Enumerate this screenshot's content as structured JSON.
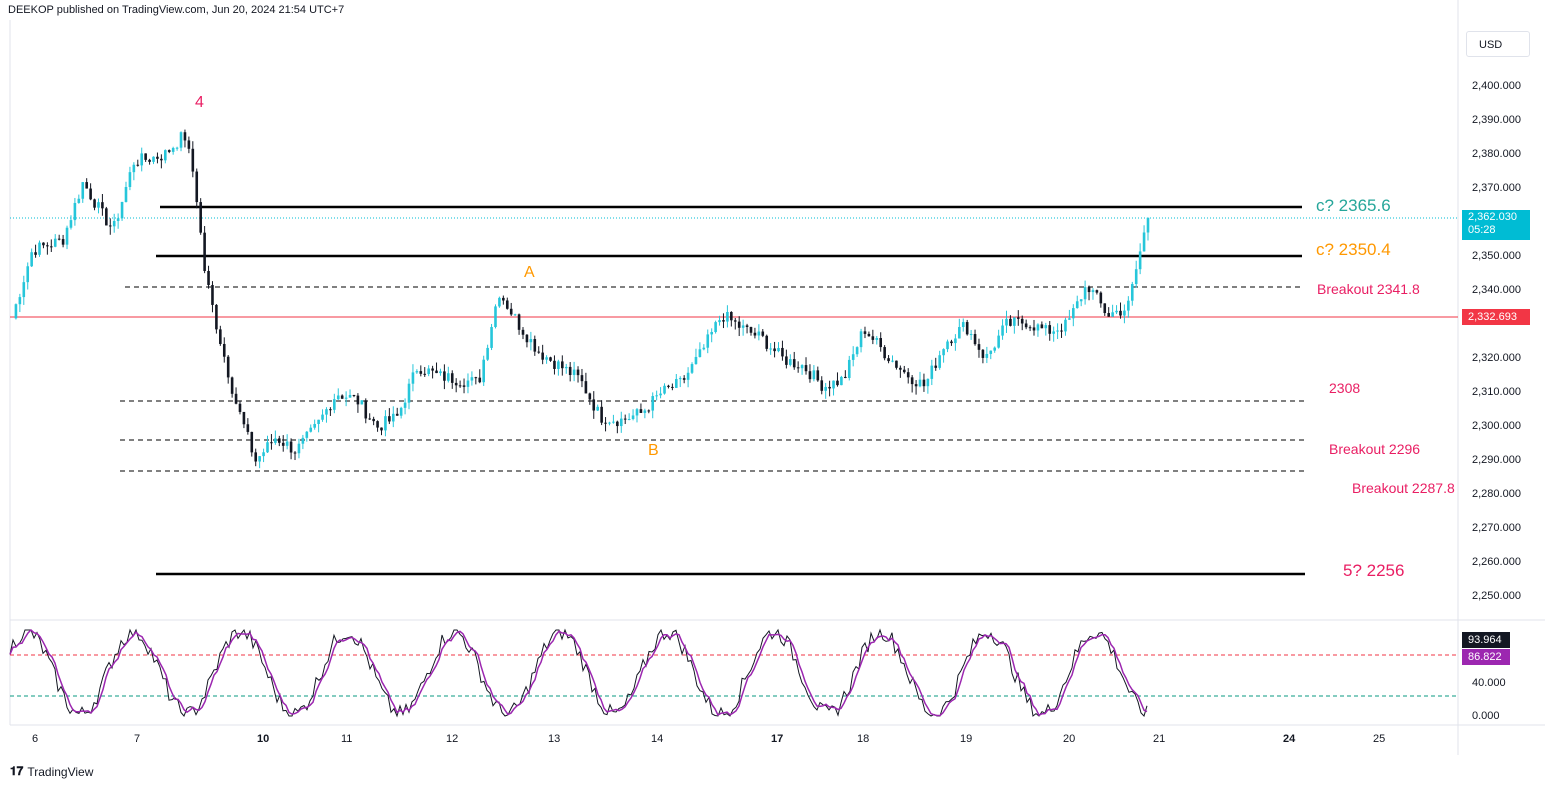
{
  "header": {
    "publisher": "DEEKOP published on TradingView.com, Jun 20, 2024 21:54 UTC+7"
  },
  "currency_button": "USD",
  "price_axis": {
    "ticks": [
      "2,400.000",
      "2,390.000",
      "2,380.000",
      "2,370.000",
      "2,350.000",
      "2,340.000",
      "2,320.000",
      "2,310.000",
      "2,300.000",
      "2,290.000",
      "2,280.000",
      "2,270.000",
      "2,260.000",
      "2,250.000"
    ],
    "current_price": "2,362.030",
    "countdown": "05:28",
    "ref_price": "2,332.693",
    "colors": {
      "current": "#00bcd4",
      "ref": "#f23645"
    }
  },
  "oscillator_axis": {
    "ticks": [
      "40.000",
      "0.000"
    ],
    "k_value": "93.964",
    "d_value": "86.822",
    "colors": {
      "k": "#131722",
      "d": "#9c27b0"
    }
  },
  "date_axis": [
    {
      "label": "6",
      "bold": false
    },
    {
      "label": "7",
      "bold": false
    },
    {
      "label": "10",
      "bold": true
    },
    {
      "label": "11",
      "bold": false
    },
    {
      "label": "12",
      "bold": false
    },
    {
      "label": "13",
      "bold": false
    },
    {
      "label": "14",
      "bold": false
    },
    {
      "label": "17",
      "bold": true
    },
    {
      "label": "18",
      "bold": false
    },
    {
      "label": "19",
      "bold": false
    },
    {
      "label": "20",
      "bold": false
    },
    {
      "label": "21",
      "bold": false
    },
    {
      "label": "24",
      "bold": true
    },
    {
      "label": "25",
      "bold": false
    }
  ],
  "annotations": {
    "wave4": "4",
    "waveA": "A",
    "waveB": "B",
    "c_upper": "c? 2365.6",
    "c_lower": "c? 2350.4",
    "breakout_2341": "Breakout 2341.8",
    "level_2308": "2308",
    "breakout_2296": "Breakout 2296",
    "breakout_2287": "Breakout 2287.8",
    "wave5": "5? 2256"
  },
  "annotation_colors": {
    "pink": "#e91e63",
    "orange": "#ff9800",
    "teal": "#26a69a"
  },
  "candle_colors": {
    "up": "#26c6da",
    "down": "#131722"
  },
  "branding": "TradingView",
  "chart_data": {
    "type": "candlestick",
    "symbol_price_range": [
      2245,
      2405
    ],
    "close_path": [
      [
        6.0,
        2332
      ],
      [
        6.2,
        2352
      ],
      [
        6.5,
        2355
      ],
      [
        6.7,
        2372
      ],
      [
        6.9,
        2362
      ],
      [
        7.0,
        2358
      ],
      [
        7.2,
        2378
      ],
      [
        7.5,
        2380
      ],
      [
        7.7,
        2386
      ],
      [
        7.8,
        2373
      ],
      [
        7.9,
        2346
      ],
      [
        8.0,
        2332
      ],
      [
        8.2,
        2308
      ],
      [
        8.4,
        2290
      ],
      [
        8.6,
        2297
      ],
      [
        8.8,
        2293
      ],
      [
        9.0,
        2300
      ],
      [
        9.2,
        2310
      ],
      [
        9.4,
        2308
      ],
      [
        9.6,
        2300
      ],
      [
        9.8,
        2303
      ],
      [
        10.0,
        2318
      ],
      [
        10.2,
        2315
      ],
      [
        10.4,
        2314
      ],
      [
        10.6,
        2313
      ],
      [
        10.8,
        2340
      ],
      [
        11.0,
        2330
      ],
      [
        11.2,
        2322
      ],
      [
        11.4,
        2318
      ],
      [
        11.6,
        2314
      ],
      [
        11.8,
        2303
      ],
      [
        12.0,
        2302
      ],
      [
        12.2,
        2304
      ],
      [
        12.4,
        2310
      ],
      [
        12.6,
        2313
      ],
      [
        12.8,
        2322
      ],
      [
        13.0,
        2333
      ],
      [
        13.2,
        2329
      ],
      [
        13.4,
        2326
      ],
      [
        13.6,
        2320
      ],
      [
        13.8,
        2318
      ],
      [
        14.0,
        2312
      ],
      [
        14.2,
        2314
      ],
      [
        14.4,
        2329
      ],
      [
        14.6,
        2322
      ],
      [
        14.8,
        2316
      ],
      [
        15.0,
        2312
      ],
      [
        15.2,
        2325
      ],
      [
        15.4,
        2330
      ],
      [
        15.6,
        2320
      ],
      [
        15.8,
        2330
      ],
      [
        16.0,
        2331
      ],
      [
        16.2,
        2328
      ],
      [
        16.4,
        2330
      ],
      [
        16.6,
        2342
      ],
      [
        16.8,
        2333
      ],
      [
        17.0,
        2335
      ],
      [
        17.2,
        2362
      ]
    ]
  }
}
